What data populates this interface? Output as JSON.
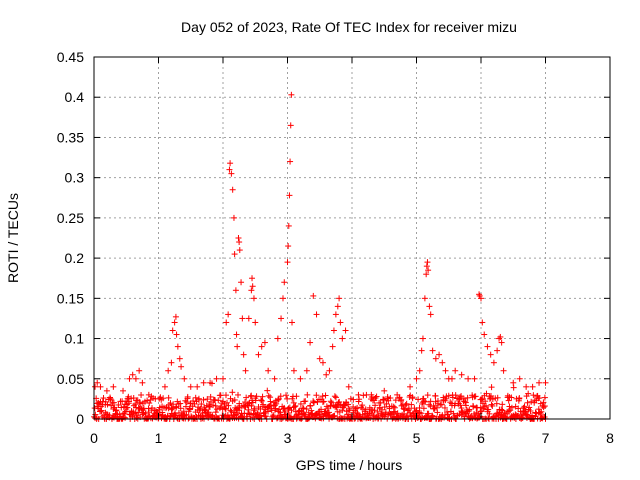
{
  "chart_data": {
    "type": "scatter",
    "title": "Day 052 of 2023, Rate Of TEC Index for receiver mizu",
    "xlabel": "GPS time / hours",
    "ylabel": "ROTI / TECUs",
    "xlim": [
      0,
      8
    ],
    "ylim": [
      0,
      0.45
    ],
    "xticks": [
      "0",
      "1",
      "2",
      "3",
      "4",
      "5",
      "6",
      "7",
      "8"
    ],
    "yticks": [
      "0",
      "0.05",
      "0.1",
      "0.15",
      "0.2",
      "0.25",
      "0.3",
      "0.35",
      "0.4",
      "0.45"
    ],
    "grid": true,
    "marker": "+",
    "color": "#ff0000",
    "data_extent_hours": [
      0,
      7.0
    ],
    "baseline_range": [
      0.0,
      0.03
    ],
    "series": [
      {
        "name": "ROTI",
        "points": [
          [
            0.05,
            0.045
          ],
          [
            0.1,
            0.04
          ],
          [
            0.2,
            0.035
          ],
          [
            0.3,
            0.04
          ],
          [
            0.45,
            0.035
          ],
          [
            0.55,
            0.05
          ],
          [
            0.6,
            0.055
          ],
          [
            0.65,
            0.05
          ],
          [
            0.7,
            0.06
          ],
          [
            0.75,
            0.045
          ],
          [
            0.85,
            0.03
          ],
          [
            0.95,
            0.025
          ],
          [
            1.1,
            0.04
          ],
          [
            1.15,
            0.06
          ],
          [
            1.2,
            0.07
          ],
          [
            1.22,
            0.11
          ],
          [
            1.25,
            0.12
          ],
          [
            1.27,
            0.127
          ],
          [
            1.28,
            0.105
          ],
          [
            1.3,
            0.09
          ],
          [
            1.33,
            0.075
          ],
          [
            1.35,
            0.065
          ],
          [
            1.4,
            0.05
          ],
          [
            1.5,
            0.04
          ],
          [
            1.6,
            0.04
          ],
          [
            1.7,
            0.045
          ],
          [
            1.8,
            0.045
          ],
          [
            1.9,
            0.05
          ],
          [
            2.0,
            0.05
          ],
          [
            2.05,
            0.12
          ],
          [
            2.08,
            0.13
          ],
          [
            2.1,
            0.31
          ],
          [
            2.11,
            0.318
          ],
          [
            2.13,
            0.305
          ],
          [
            2.15,
            0.285
          ],
          [
            2.17,
            0.25
          ],
          [
            2.18,
            0.205
          ],
          [
            2.2,
            0.16
          ],
          [
            2.21,
            0.105
          ],
          [
            2.22,
            0.09
          ],
          [
            2.24,
            0.225
          ],
          [
            2.25,
            0.22
          ],
          [
            2.26,
            0.21
          ],
          [
            2.28,
            0.17
          ],
          [
            2.3,
            0.125
          ],
          [
            2.32,
            0.08
          ],
          [
            2.35,
            0.06
          ],
          [
            2.4,
            0.125
          ],
          [
            2.44,
            0.16
          ],
          [
            2.45,
            0.175
          ],
          [
            2.46,
            0.165
          ],
          [
            2.48,
            0.15
          ],
          [
            2.5,
            0.12
          ],
          [
            2.55,
            0.08
          ],
          [
            2.6,
            0.09
          ],
          [
            2.65,
            0.095
          ],
          [
            2.7,
            0.06
          ],
          [
            2.8,
            0.05
          ],
          [
            2.85,
            0.1
          ],
          [
            2.9,
            0.125
          ],
          [
            2.93,
            0.15
          ],
          [
            2.95,
            0.17
          ],
          [
            3.0,
            0.195
          ],
          [
            3.01,
            0.215
          ],
          [
            3.02,
            0.24
          ],
          [
            3.03,
            0.278
          ],
          [
            3.04,
            0.32
          ],
          [
            3.05,
            0.365
          ],
          [
            3.06,
            0.403
          ],
          [
            3.07,
            0.12
          ],
          [
            3.1,
            0.06
          ],
          [
            3.2,
            0.05
          ],
          [
            3.3,
            0.06
          ],
          [
            3.35,
            0.095
          ],
          [
            3.4,
            0.153
          ],
          [
            3.45,
            0.13
          ],
          [
            3.5,
            0.075
          ],
          [
            3.55,
            0.07
          ],
          [
            3.6,
            0.055
          ],
          [
            3.65,
            0.06
          ],
          [
            3.7,
            0.09
          ],
          [
            3.72,
            0.11
          ],
          [
            3.75,
            0.13
          ],
          [
            3.78,
            0.14
          ],
          [
            3.8,
            0.15
          ],
          [
            3.82,
            0.12
          ],
          [
            3.85,
            0.1
          ],
          [
            3.9,
            0.11
          ],
          [
            3.95,
            0.04
          ],
          [
            4.1,
            0.03
          ],
          [
            4.3,
            0.03
          ],
          [
            4.5,
            0.035
          ],
          [
            4.7,
            0.03
          ],
          [
            4.9,
            0.04
          ],
          [
            5.0,
            0.05
          ],
          [
            5.05,
            0.06
          ],
          [
            5.08,
            0.085
          ],
          [
            5.1,
            0.1
          ],
          [
            5.13,
            0.15
          ],
          [
            5.15,
            0.18
          ],
          [
            5.16,
            0.19
          ],
          [
            5.17,
            0.195
          ],
          [
            5.18,
            0.185
          ],
          [
            5.2,
            0.14
          ],
          [
            5.22,
            0.13
          ],
          [
            5.25,
            0.085
          ],
          [
            5.3,
            0.075
          ],
          [
            5.35,
            0.08
          ],
          [
            5.4,
            0.07
          ],
          [
            5.45,
            0.06
          ],
          [
            5.5,
            0.05
          ],
          [
            5.55,
            0.05
          ],
          [
            5.6,
            0.06
          ],
          [
            5.7,
            0.055
          ],
          [
            5.8,
            0.05
          ],
          [
            5.9,
            0.05
          ],
          [
            5.97,
            0.155
          ],
          [
            5.98,
            0.153
          ],
          [
            6.0,
            0.15
          ],
          [
            6.02,
            0.12
          ],
          [
            6.05,
            0.105
          ],
          [
            6.1,
            0.09
          ],
          [
            6.15,
            0.08
          ],
          [
            6.2,
            0.07
          ],
          [
            6.25,
            0.085
          ],
          [
            6.28,
            0.1
          ],
          [
            6.3,
            0.102
          ],
          [
            6.32,
            0.095
          ],
          [
            6.35,
            0.06
          ],
          [
            6.5,
            0.045
          ],
          [
            6.6,
            0.05
          ],
          [
            6.7,
            0.04
          ],
          [
            6.8,
            0.04
          ],
          [
            6.9,
            0.045
          ],
          [
            7.0,
            0.045
          ]
        ]
      }
    ]
  }
}
